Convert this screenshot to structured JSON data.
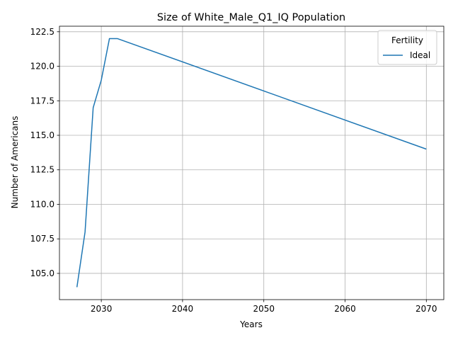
{
  "chart_data": {
    "type": "line",
    "title": "Size of White_Male_Q1_IQ Population",
    "xlabel": "Years",
    "ylabel": "Number of Americans",
    "xlim": [
      2024.85,
      2072.15
    ],
    "ylim": [
      103.1,
      122.9
    ],
    "xticks": [
      2030,
      2040,
      2050,
      2060,
      2070
    ],
    "yticks": [
      105.0,
      107.5,
      110.0,
      112.5,
      115.0,
      117.5,
      120.0,
      122.5
    ],
    "ytick_labels": [
      "105.0",
      "107.5",
      "110.0",
      "112.5",
      "115.0",
      "117.5",
      "120.0",
      "122.5"
    ],
    "grid": true,
    "legend": {
      "title": "Fertility",
      "position": "top-right"
    },
    "series": [
      {
        "name": "Ideal",
        "color": "#1f77b4",
        "x": [
          2027,
          2028,
          2029,
          2030,
          2031,
          2032,
          2070
        ],
        "y": [
          104,
          108,
          117,
          119,
          122,
          122,
          114
        ]
      }
    ]
  }
}
